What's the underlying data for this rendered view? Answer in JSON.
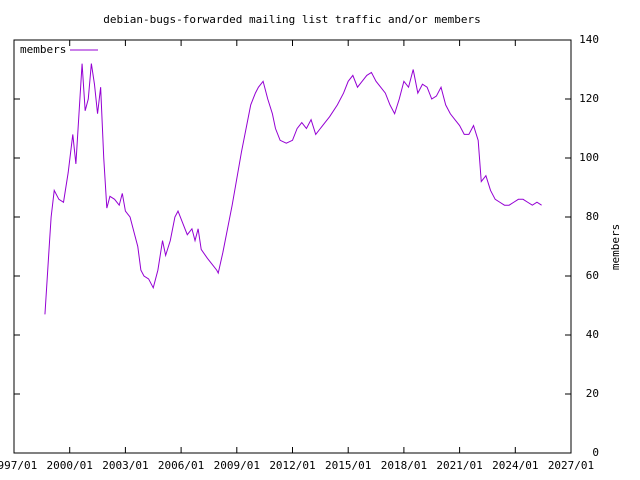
{
  "chart_data": {
    "type": "line",
    "title": "debian-bugs-forwarded mailing list traffic and/or members",
    "ylabel": "members",
    "xlim": [
      "1997/01",
      "2027/01"
    ],
    "xticks": [
      "1997/01",
      "2000/01",
      "2003/01",
      "2006/01",
      "2009/01",
      "2012/01",
      "2015/01",
      "2018/01",
      "2021/01",
      "2024/01",
      "2027/01"
    ],
    "ylim": [
      0,
      140
    ],
    "yticks": [
      0,
      20,
      40,
      60,
      80,
      100,
      120,
      140
    ],
    "legend": "top-left",
    "x": [
      "1998/09",
      "1998/12",
      "1999/01",
      "1999/03",
      "1999/06",
      "1999/09",
      "1999/12",
      "2000/03",
      "2000/05",
      "2000/07",
      "2000/09",
      "2000/11",
      "2001/01",
      "2001/03",
      "2001/05",
      "2001/07",
      "2001/09",
      "2001/11",
      "2002/01",
      "2002/03",
      "2002/06",
      "2002/09",
      "2002/11",
      "2003/01",
      "2003/04",
      "2003/07",
      "2003/09",
      "2003/11",
      "2004/01",
      "2004/04",
      "2004/07",
      "2004/10",
      "2005/01",
      "2005/03",
      "2005/06",
      "2005/09",
      "2005/11",
      "2006/02",
      "2006/05",
      "2006/08",
      "2006/10",
      "2006/12",
      "2007/02",
      "2007/06",
      "2007/09",
      "2007/12",
      "2008/01",
      "2008/04",
      "2008/10",
      "2009/04",
      "2009/10",
      "2010/01",
      "2010/03",
      "2010/06",
      "2010/09",
      "2010/12",
      "2011/02",
      "2011/05",
      "2011/09",
      "2012/01",
      "2012/04",
      "2012/07",
      "2012/10",
      "2013/01",
      "2013/04",
      "2013/07",
      "2013/10",
      "2014/01",
      "2014/06",
      "2014/10",
      "2015/01",
      "2015/04",
      "2015/07",
      "2015/10",
      "2016/01",
      "2016/04",
      "2016/07",
      "2016/10",
      "2017/01",
      "2017/04",
      "2017/07",
      "2017/10",
      "2018/01",
      "2018/04",
      "2018/07",
      "2018/10",
      "2019/01",
      "2019/04",
      "2019/07",
      "2019/10",
      "2020/01",
      "2020/04",
      "2020/07",
      "2020/10",
      "2021/01",
      "2021/04",
      "2021/07",
      "2021/10",
      "2022/01",
      "2022/03",
      "2022/06",
      "2022/09",
      "2022/12",
      "2023/03",
      "2023/06",
      "2023/09",
      "2023/12",
      "2024/03",
      "2024/06",
      "2024/09",
      "2024/12",
      "2025/03",
      "2025/06"
    ],
    "series": [
      {
        "name": "members",
        "color": "#9400d3",
        "values": [
          47,
          72,
          80,
          89,
          86,
          85,
          95,
          108,
          98,
          115,
          132,
          116,
          120,
          132,
          125,
          115,
          124,
          100,
          83,
          87,
          86,
          84,
          88,
          82,
          80,
          74,
          70,
          62,
          60,
          59,
          56,
          62,
          72,
          67,
          72,
          80,
          82,
          78,
          74,
          76,
          72,
          76,
          69,
          66,
          64,
          62,
          61,
          68,
          84,
          102,
          118,
          122,
          124,
          126,
          120,
          115,
          110,
          106,
          105,
          106,
          110,
          112,
          110,
          113,
          108,
          110,
          112,
          114,
          118,
          122,
          126,
          128,
          124,
          126,
          128,
          129,
          126,
          124,
          122,
          118,
          115,
          120,
          126,
          124,
          130,
          122,
          125,
          124,
          120,
          121,
          124,
          118,
          115,
          113,
          111,
          108,
          108,
          111,
          106,
          92,
          94,
          89,
          86,
          85,
          84,
          84,
          85,
          86,
          86,
          85,
          84,
          85,
          84
        ]
      }
    ]
  }
}
